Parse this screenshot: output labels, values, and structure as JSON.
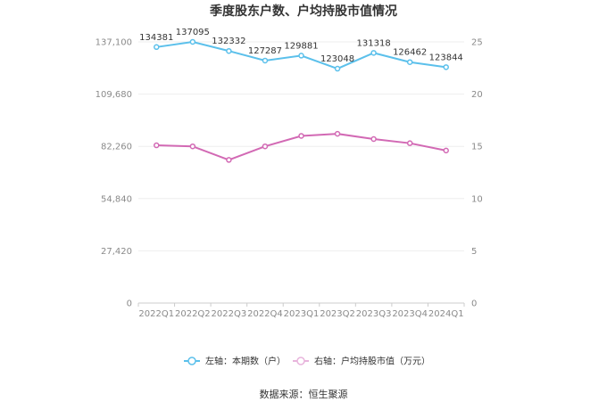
{
  "chart_data": {
    "type": "line",
    "title": "季度股东户数、户均持股市值情况",
    "categories": [
      "2022Q1",
      "2022Q2",
      "2022Q3",
      "2022Q4",
      "2023Q1",
      "2023Q2",
      "2023Q3",
      "2023Q4",
      "2024Q1"
    ],
    "left_axis": {
      "ylim": [
        0,
        137100
      ],
      "ticks": [
        0,
        27420,
        54840,
        82260,
        109680,
        137100
      ],
      "tick_labels": [
        "0",
        "27,420",
        "54,840",
        "82,260",
        "109,680",
        "137,100"
      ]
    },
    "right_axis": {
      "ylim": [
        0,
        25
      ],
      "ticks": [
        0,
        5,
        10,
        15,
        20,
        25
      ],
      "tick_labels": [
        "0",
        "5",
        "10",
        "15",
        "20",
        "25"
      ]
    },
    "series": [
      {
        "name": "左轴：本期数（户）",
        "axis": "left",
        "color": "#5bc0eb",
        "values": [
          134381,
          137095,
          132332,
          127287,
          129881,
          123048,
          131318,
          126462,
          123844
        ],
        "labels": [
          "134381",
          "137095",
          "132332",
          "127287",
          "129881",
          "123048",
          "131318",
          "126462",
          "123844"
        ]
      },
      {
        "name": "右轴：户均持股市值（万元）",
        "axis": "right",
        "color": "#d269b4",
        "values": [
          15.1,
          15.0,
          13.7,
          15.0,
          16.0,
          16.2,
          15.7,
          15.3,
          14.6
        ]
      }
    ],
    "legend_position": "bottom",
    "grid": true
  },
  "source": "数据来源：恒生聚源"
}
